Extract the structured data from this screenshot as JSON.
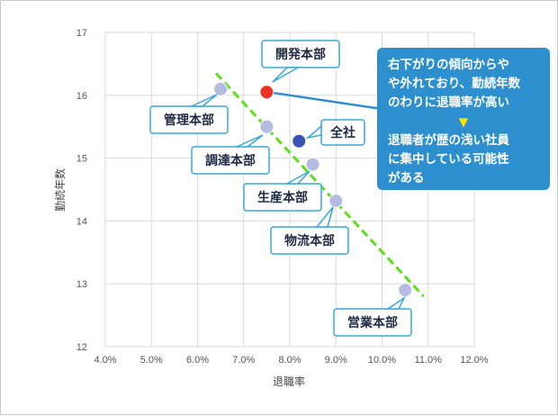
{
  "chart_data": {
    "type": "scatter",
    "xlabel": "退職率",
    "ylabel": "勤続年数",
    "xlim": [
      4.0,
      12.0
    ],
    "ylim": [
      12,
      17
    ],
    "x_ticks": [
      "4.0%",
      "5.0%",
      "6.0%",
      "7.0%",
      "8.0%",
      "9.0%",
      "10.0%",
      "11.0%",
      "12.0%"
    ],
    "y_ticks": [
      "12",
      "13",
      "14",
      "15",
      "16",
      "17"
    ],
    "grid": true,
    "points": [
      {
        "label": "開発本部",
        "x": 7.5,
        "y": 16.05,
        "color": "#ea3323"
      },
      {
        "label": "管理本部",
        "x": 6.5,
        "y": 16.1,
        "color": "#b4bde0"
      },
      {
        "label": "調達本部",
        "x": 7.5,
        "y": 15.5,
        "color": "#b4bde0"
      },
      {
        "label": "全社",
        "x": 8.2,
        "y": 15.27,
        "color": "#3a53b5"
      },
      {
        "label": "生産本部",
        "x": 8.5,
        "y": 14.9,
        "color": "#b4bde0"
      },
      {
        "label": "物流本部",
        "x": 9.0,
        "y": 14.32,
        "color": "#b4bde0"
      },
      {
        "label": "営業本部",
        "x": 10.5,
        "y": 12.9,
        "color": "#b4bde0"
      }
    ],
    "trendline": {
      "style": "dashed",
      "color": "#5ce01c",
      "from": [
        6.4,
        16.35
      ],
      "to": [
        10.9,
        12.8
      ]
    },
    "annotation": {
      "lines_top": [
        "右下がりの傾向からや",
        "や外れており、勤続年数",
        "のわりに退職率が高い"
      ],
      "arrow": "▼",
      "lines_bottom": [
        "退職者が歴の浅い社員",
        "に集中している可能性",
        "がある"
      ],
      "target": "開発本部",
      "bg_color": "#2e8fcf",
      "text_color": "#ffffff"
    }
  }
}
